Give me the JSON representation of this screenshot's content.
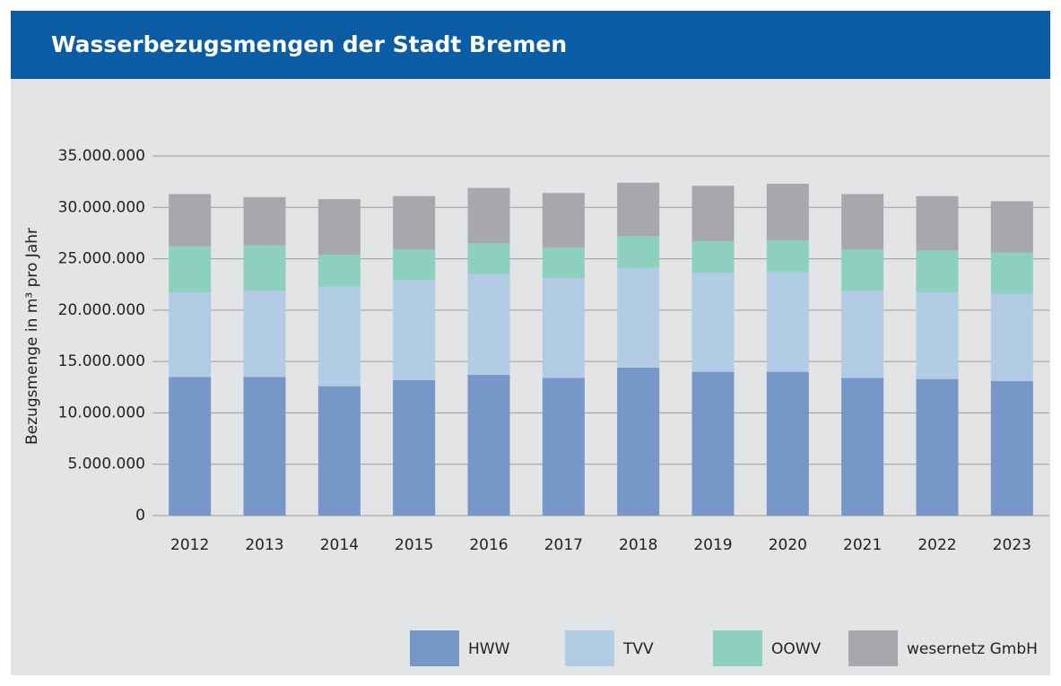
{
  "chart_data": {
    "type": "stacked_bar",
    "title": "Wasserbezugsmengen der Stadt Bremen",
    "y_label": "Bezugsmenge in m³ pro Jahr",
    "categories": [
      "2012",
      "2013",
      "2014",
      "2015",
      "2016",
      "2017",
      "2018",
      "2019",
      "2020",
      "2021",
      "2022",
      "2023"
    ],
    "series": [
      {
        "name": "HWW",
        "color": "#7697c8",
        "values": [
          13500000,
          13500000,
          12600000,
          13200000,
          13700000,
          13400000,
          14400000,
          14000000,
          14000000,
          13400000,
          13300000,
          13100000
        ]
      },
      {
        "name": "TVV",
        "color": "#b3cce6",
        "values": [
          8200000,
          8400000,
          9700000,
          9700000,
          9800000,
          9700000,
          9700000,
          9600000,
          9700000,
          8500000,
          8400000,
          8500000
        ]
      },
      {
        "name": "OOWV",
        "color": "#8dd0bd",
        "values": [
          4500000,
          4400000,
          3100000,
          3000000,
          3000000,
          3000000,
          3100000,
          3100000,
          3100000,
          4000000,
          4100000,
          4000000
        ]
      },
      {
        "name": "wesernetz GmbH",
        "color": "#a7a8ac",
        "values": [
          5100000,
          4700000,
          5400000,
          5200000,
          5400000,
          5300000,
          5200000,
          5400000,
          5500000,
          5400000,
          5300000,
          5000000
        ]
      }
    ],
    "ylim": [
      0,
      35000000
    ],
    "yticks": [
      0,
      {
        "value": 5000000,
        "label": "5.000.000"
      },
      {
        "value": 10000000,
        "label": "10.000.000"
      },
      {
        "value": 15000000,
        "label": "15.000.000"
      },
      {
        "value": 20000000,
        "label": "20.000.000"
      },
      {
        "value": 25000000,
        "label": "25.000.000"
      },
      {
        "value": 30000000,
        "label": "30.000.000"
      },
      {
        "value": 35000000,
        "label": "35.000.000"
      }
    ],
    "grid": true
  }
}
